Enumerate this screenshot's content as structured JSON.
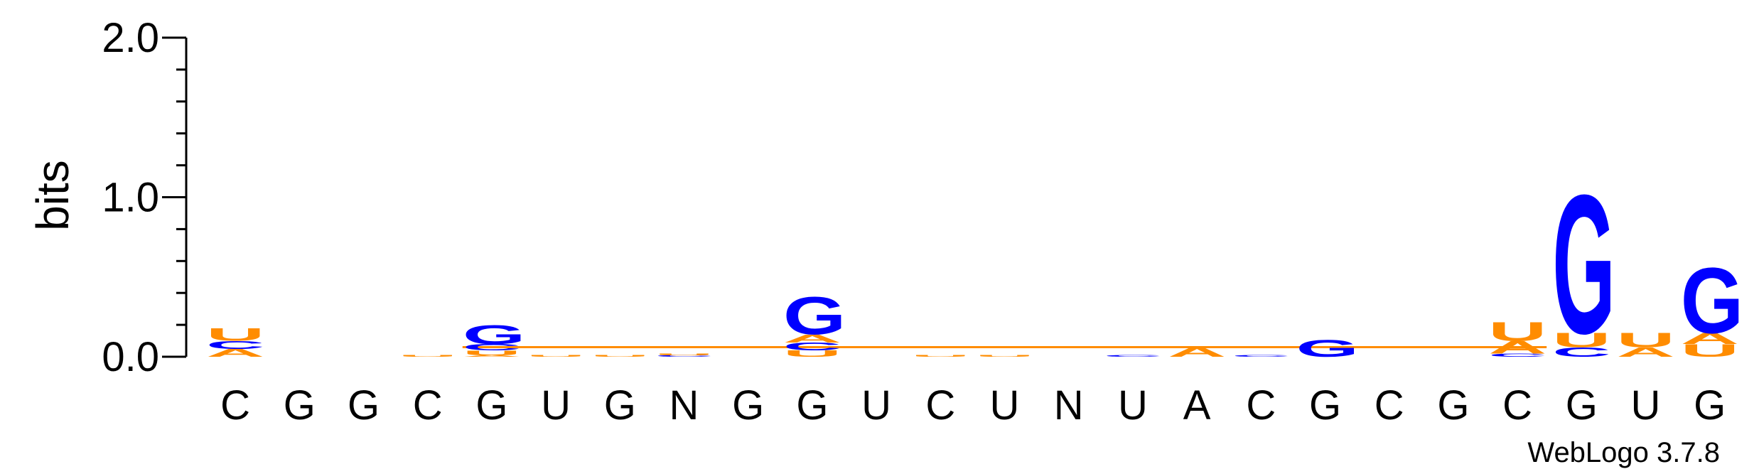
{
  "chart_data": {
    "type": "sequence-logo",
    "ylabel": "bits",
    "ylim": [
      0,
      2.0
    ],
    "yticks": [
      {
        "value": 0.0,
        "label": "0.0"
      },
      {
        "value": 1.0,
        "label": "1.0"
      },
      {
        "value": 2.0,
        "label": "2.0"
      }
    ],
    "minor_tick_step": 0.2,
    "colors": {
      "A": "#ff8c00",
      "U": "#ff8c00",
      "G": "#0000ff",
      "C": "#0000ff"
    },
    "positions": [
      {
        "label": "C",
        "letters": [
          {
            "base": "A",
            "h": 0.05
          },
          {
            "base": "C",
            "h": 0.05
          },
          {
            "base": "U",
            "h": 0.08
          }
        ]
      },
      {
        "label": "G",
        "letters": []
      },
      {
        "label": "G",
        "letters": []
      },
      {
        "label": "C",
        "letters": [
          {
            "base": "U",
            "h": 0.01
          }
        ]
      },
      {
        "label": "G",
        "letters": [
          {
            "base": "A",
            "h": 0.01
          },
          {
            "base": "U",
            "h": 0.03
          },
          {
            "base": "C",
            "h": 0.04
          },
          {
            "base": "G",
            "h": 0.12
          }
        ]
      },
      {
        "label": "U",
        "letters": [
          {
            "base": "U",
            "h": 0.01
          }
        ]
      },
      {
        "label": "G",
        "letters": [
          {
            "base": "U",
            "h": 0.01
          }
        ]
      },
      {
        "label": "N",
        "letters": [
          {
            "base": "C",
            "h": 0.01
          },
          {
            "base": "U",
            "h": 0.01
          }
        ]
      },
      {
        "label": "G",
        "letters": []
      },
      {
        "label": "G",
        "letters": [
          {
            "base": "U",
            "h": 0.04
          },
          {
            "base": "C",
            "h": 0.05
          },
          {
            "base": "A",
            "h": 0.05
          },
          {
            "base": "G",
            "h": 0.24
          }
        ]
      },
      {
        "label": "U",
        "letters": []
      },
      {
        "label": "C",
        "letters": [
          {
            "base": "U",
            "h": 0.01
          }
        ]
      },
      {
        "label": "U",
        "letters": [
          {
            "base": "U",
            "h": 0.01
          }
        ]
      },
      {
        "label": "N",
        "letters": []
      },
      {
        "label": "U",
        "letters": [
          {
            "base": "C",
            "h": 0.01
          }
        ]
      },
      {
        "label": "A",
        "letters": [
          {
            "base": "A",
            "h": 0.06
          }
        ]
      },
      {
        "label": "C",
        "letters": [
          {
            "base": "C",
            "h": 0.01
          }
        ]
      },
      {
        "label": "G",
        "letters": [
          {
            "base": "G",
            "h": 0.11
          }
        ]
      },
      {
        "label": "C",
        "letters": []
      },
      {
        "label": "G",
        "letters": []
      },
      {
        "label": "C",
        "letters": [
          {
            "base": "C",
            "h": 0.02
          },
          {
            "base": "A",
            "h": 0.08
          },
          {
            "base": "U",
            "h": 0.12
          }
        ]
      },
      {
        "label": "G",
        "letters": [
          {
            "base": "C",
            "h": 0.06
          },
          {
            "base": "U",
            "h": 0.09
          },
          {
            "base": "G",
            "h": 0.89
          }
        ]
      },
      {
        "label": "U",
        "letters": [
          {
            "base": "A",
            "h": 0.06
          },
          {
            "base": "U",
            "h": 0.09
          }
        ]
      },
      {
        "label": "G",
        "letters": [
          {
            "base": "U",
            "h": 0.08
          },
          {
            "base": "A",
            "h": 0.07
          },
          {
            "base": "G",
            "h": 0.42
          }
        ]
      }
    ],
    "baseline_line": {
      "from_position": 4,
      "to_position": 20,
      "value": 0.06
    },
    "footer": "WebLogo 3.7.8"
  }
}
